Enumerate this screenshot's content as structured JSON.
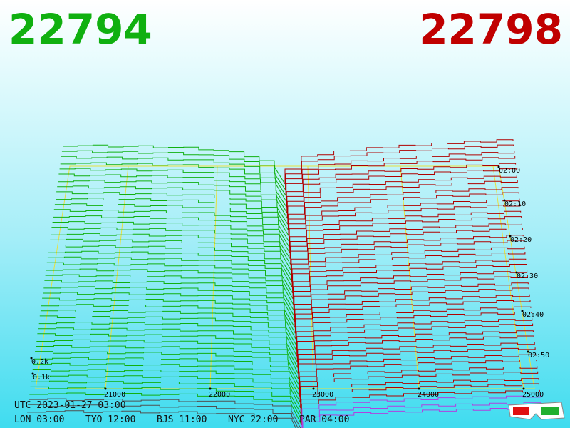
{
  "header": {
    "bid": "22794",
    "ask": "22798"
  },
  "price_axis": {
    "labels": [
      "21000",
      "22000",
      "23000",
      "24000",
      "25000"
    ]
  },
  "time_axis": {
    "labels": [
      "02:00",
      "02:10",
      "02:20",
      "02:30",
      "02:40",
      "02:50"
    ]
  },
  "depth_axis": {
    "labels": [
      "0.2k",
      "0.1k"
    ]
  },
  "footer": {
    "utc": "UTC 2023-01-27 03:00",
    "clocks": [
      "LON 03:00",
      "TYO 12:00",
      "BJS 11:00",
      "NYC 22:00",
      "PAR 04:00"
    ]
  }
}
